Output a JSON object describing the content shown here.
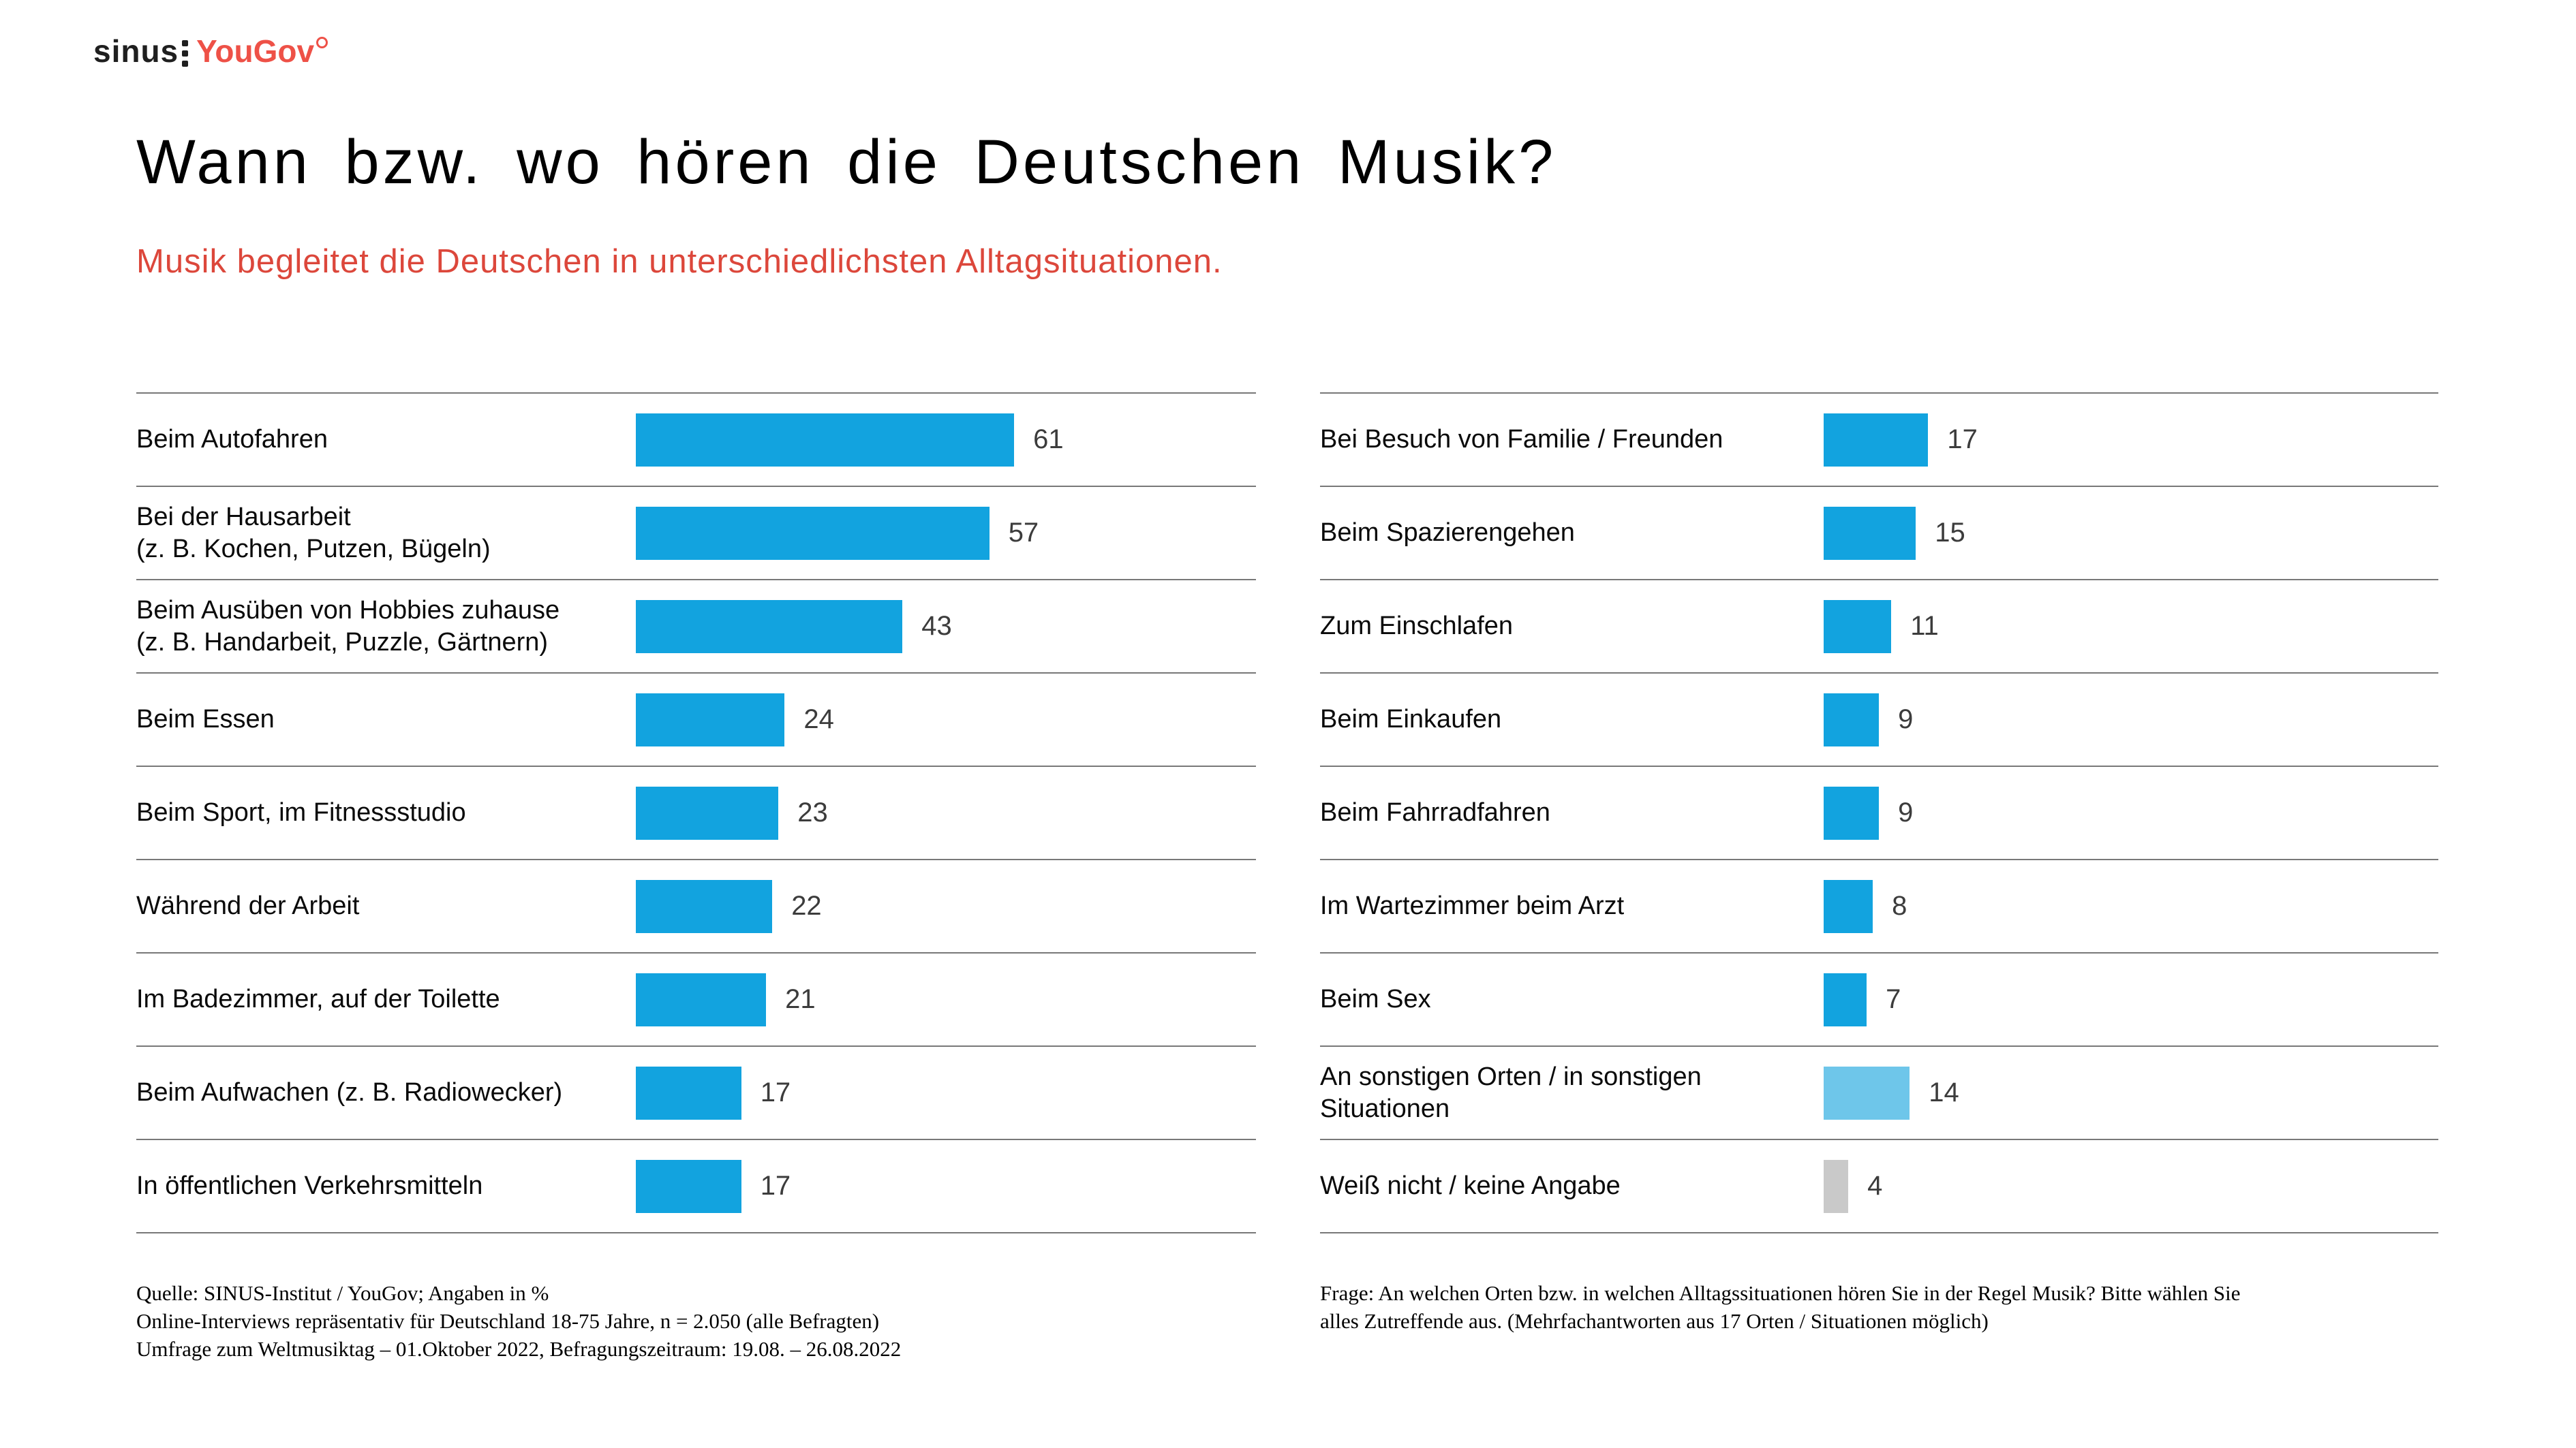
{
  "logo": {
    "sinus_text": "sinus",
    "yougov_text": "YouGov"
  },
  "header": {
    "title": "Wann bzw. wo hören die Deutschen Musik?",
    "subtitle": "Musik begleitet die Deutschen in unterschiedlichsten Alltagsituationen."
  },
  "colors": {
    "bar_blue": "#12a3df",
    "bar_light_blue": "#6ec6ea",
    "bar_gray": "#c9c9c9",
    "accent_red": "#dc473b",
    "logo_red": "#ee5147",
    "separator_gray": "#787878",
    "value_text": "#3c3c3c"
  },
  "chart_data": [
    {
      "type": "bar",
      "orientation": "horizontal",
      "panel": "left",
      "unit": "%",
      "xlim": [
        0,
        100
      ],
      "grid": false,
      "legend": false,
      "categories": [
        "Beim Autofahren",
        "Bei der Hausarbeit\n(z. B. Kochen, Putzen, Bügeln)",
        "Beim Ausüben von Hobbies zuhause\n(z. B. Handarbeit, Puzzle, Gärtnern)",
        "Beim Essen",
        "Beim Sport, im Fitnessstudio",
        "Während der Arbeit",
        "Im Badezimmer, auf der Toilette",
        "Beim Aufwachen (z. B. Radiowecker)",
        "In öffentlichen Verkehrsmitteln"
      ],
      "values": [
        61,
        57,
        43,
        24,
        23,
        22,
        21,
        17,
        17
      ],
      "bar_colors": [
        null,
        null,
        null,
        null,
        null,
        null,
        null,
        null,
        null
      ]
    },
    {
      "type": "bar",
      "orientation": "horizontal",
      "panel": "right",
      "unit": "%",
      "xlim": [
        0,
        100
      ],
      "grid": false,
      "legend": false,
      "categories": [
        "Bei Besuch von Familie / Freunden",
        "Beim Spazierengehen",
        "Zum Einschlafen",
        "Beim Einkaufen",
        "Beim Fahrradfahren",
        "Im Wartezimmer beim Arzt",
        "Beim Sex",
        "An sonstigen Orten / in sonstigen\nSituationen",
        "Weiß nicht / keine Angabe"
      ],
      "values": [
        17,
        15,
        11,
        9,
        9,
        8,
        7,
        14,
        4
      ],
      "bar_colors": [
        null,
        null,
        null,
        null,
        null,
        null,
        null,
        "#6ec6ea",
        "#c9c9c9"
      ]
    }
  ],
  "footnotes": {
    "left_lines": [
      "Quelle: SINUS-Institut / YouGov; Angaben in %",
      "Online-Interviews repräsentativ für Deutschland 18-75 Jahre, n = 2.050 (alle Befragten)",
      "Umfrage zum Weltmusiktag – 01.Oktober 2022, Befragungszeitraum: 19.08. – 26.08.2022"
    ],
    "right_lines": [
      "Frage: An welchen Orten bzw. in welchen Alltagssituationen hören Sie in der Regel Musik? Bitte wählen Sie",
      "alles Zutreffende aus. (Mehrfachantworten aus 17 Orten / Situationen möglich)"
    ]
  }
}
